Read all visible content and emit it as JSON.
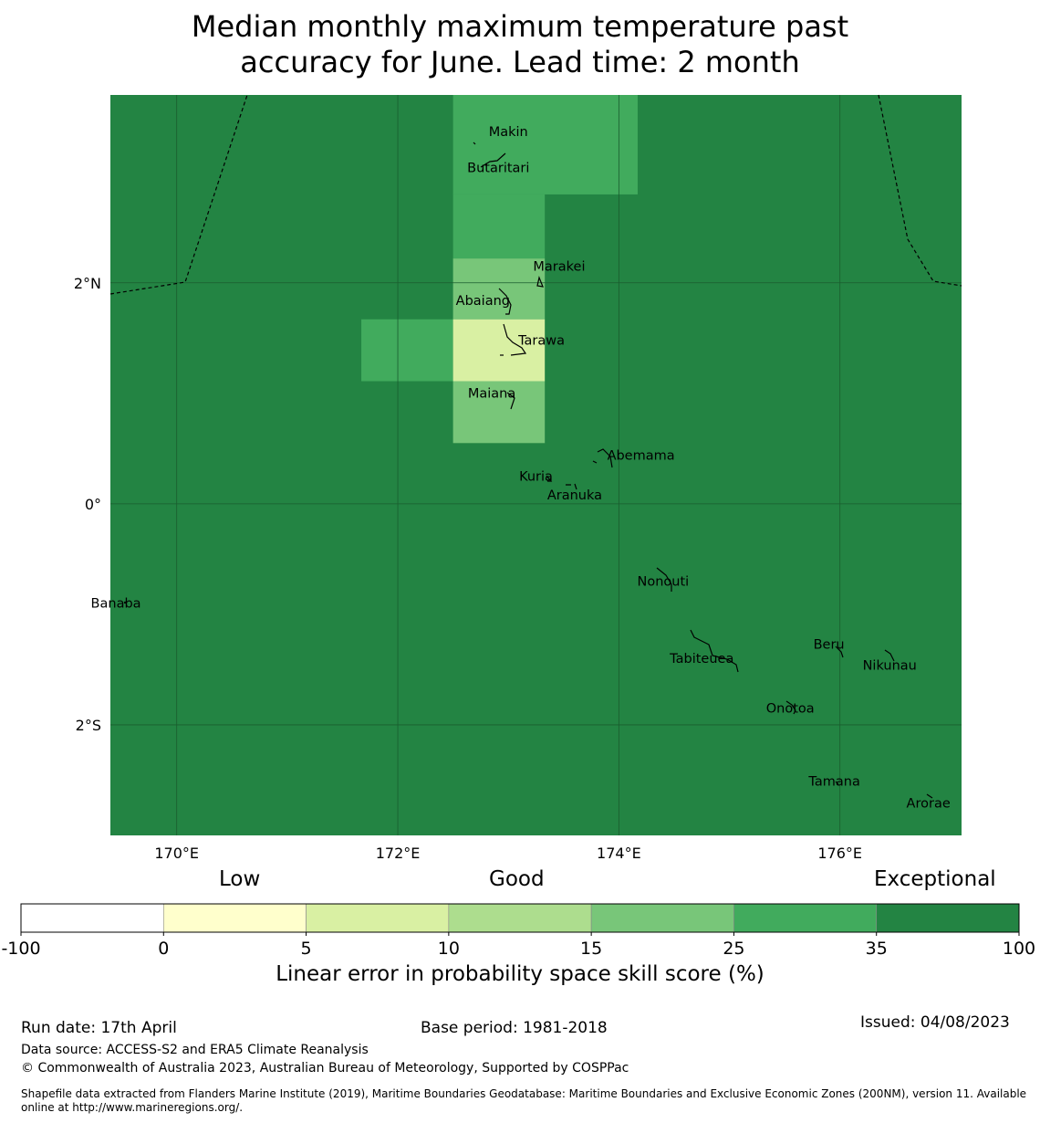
{
  "title_line1": "Median monthly maximum temperature past",
  "title_line2": "accuracy for June. Lead time: 2 month",
  "colors": {
    "exceptional": "#238443",
    "c25_35": "#41ab5d",
    "c15_25": "#78c679",
    "c10_15": "#addd8e",
    "c5_10": "#d9f0a3",
    "c0_5": "#ffffcc",
    "neg": "#ffffff",
    "grid": "#1a5c2e",
    "coast": "#000000"
  },
  "map": {
    "lon_ticks": [
      {
        "value": 170,
        "label": "170°E"
      },
      {
        "value": 172,
        "label": "172°E"
      },
      {
        "value": 174,
        "label": "174°E"
      },
      {
        "value": 176,
        "label": "176°E"
      }
    ],
    "lat_ticks": [
      {
        "value": 2,
        "label": "2°N"
      },
      {
        "value": 0,
        "label": "0°"
      },
      {
        "value": -2,
        "label": "2°S"
      }
    ],
    "extent": {
      "lon_min": 169.4,
      "lon_max": 177.1,
      "lat_min": -3.0,
      "lat_max": 3.7
    },
    "cells": [
      {
        "lon0": 172.5,
        "lon1": 174.17,
        "lat0": 2.8,
        "lat1": 3.7,
        "color": "c25_35"
      },
      {
        "lon0": 172.5,
        "lon1": 173.33,
        "lat0": 2.22,
        "lat1": 2.8,
        "color": "c25_35"
      },
      {
        "lon0": 172.5,
        "lon1": 173.33,
        "lat0": 1.67,
        "lat1": 2.22,
        "color": "c15_25"
      },
      {
        "lon0": 171.67,
        "lon1": 172.5,
        "lat0": 1.11,
        "lat1": 1.67,
        "color": "c25_35"
      },
      {
        "lon0": 172.5,
        "lon1": 173.33,
        "lat0": 1.11,
        "lat1": 1.67,
        "color": "c5_10"
      },
      {
        "lon0": 172.5,
        "lon1": 173.33,
        "lat0": 0.55,
        "lat1": 1.11,
        "color": "c15_25"
      }
    ],
    "islands": [
      {
        "name": "Makin",
        "lon": 173.0,
        "lat": 3.33
      },
      {
        "name": "Butaritari",
        "lon": 172.91,
        "lat": 3.0
      },
      {
        "name": "Marakei",
        "lon": 173.46,
        "lat": 2.11
      },
      {
        "name": "Abaiang",
        "lon": 172.77,
        "lat": 1.8
      },
      {
        "name": "Tarawa",
        "lon": 173.3,
        "lat": 1.44
      },
      {
        "name": "Maiana",
        "lon": 172.85,
        "lat": 0.96
      },
      {
        "name": "Abemama",
        "lon": 174.2,
        "lat": 0.4
      },
      {
        "name": "Kuria",
        "lon": 173.25,
        "lat": 0.21
      },
      {
        "name": "Aranuka",
        "lon": 173.6,
        "lat": 0.04
      },
      {
        "name": "Nonouti",
        "lon": 174.4,
        "lat": -0.74
      },
      {
        "name": "Banaba",
        "lon": 169.45,
        "lat": -0.94
      },
      {
        "name": "Tabiteuea",
        "lon": 174.75,
        "lat": -1.44
      },
      {
        "name": "Beru",
        "lon": 175.9,
        "lat": -1.31
      },
      {
        "name": "Nikunau",
        "lon": 176.45,
        "lat": -1.5
      },
      {
        "name": "Onotoa",
        "lon": 175.55,
        "lat": -1.89
      },
      {
        "name": "Tamana",
        "lon": 175.95,
        "lat": -2.55
      },
      {
        "name": "Arorae",
        "lon": 176.8,
        "lat": -2.75
      }
    ]
  },
  "legend": {
    "categories": [
      "Low",
      "Good",
      "Exceptional"
    ],
    "boundaries": [
      "-100",
      "0",
      "5",
      "10",
      "15",
      "25",
      "35",
      "100"
    ],
    "colors": [
      "neg",
      "c0_5",
      "c5_10",
      "c10_15",
      "c15_25",
      "c25_35",
      "exceptional"
    ],
    "title": "Linear error in probability space skill score (%)"
  },
  "footer": {
    "run_date": "Run date: 17th April",
    "base_period": "Base period: 1981-2018",
    "issued": "Issued: 04/08/2023",
    "data_source": "Data source: ACCESS-S2 and ERA5 Climate Reanalysis",
    "copyright": "© Commonwealth of Australia 2023, Australian Bureau of Meteorology, Supported by COSPPac",
    "shapefile_line1": "Shapefile data extracted from Flanders Marine Institute (2019), Maritime Boundaries Geodatabase: Maritime Boundaries and Exclusive Economic Zones (200NM), version 11. Available",
    "shapefile_line2": "online at http://www.marineregions.org/."
  }
}
